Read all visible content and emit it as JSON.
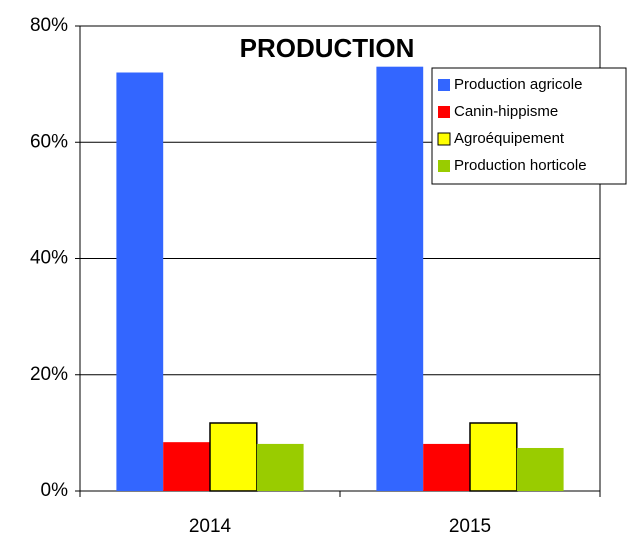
{
  "chart_data": {
    "type": "bar",
    "title": "PRODUCTION",
    "categories": [
      "2014",
      "2015"
    ],
    "series": [
      {
        "name": "Production agricole",
        "color": "#3366ff",
        "values": [
          72,
          73
        ]
      },
      {
        "name": "Canin-hippisme",
        "color": "#ff0000",
        "values": [
          8.4,
          8.1
        ]
      },
      {
        "name": "Agroéquipement",
        "color": "#ffff00",
        "values": [
          11.7,
          11.7
        ]
      },
      {
        "name": "Production horticole",
        "color": "#99cc00",
        "values": [
          8.1,
          7.4
        ]
      }
    ],
    "ylim": [
      0,
      80
    ],
    "yticks": [
      {
        "value": 0,
        "label": "0%"
      },
      {
        "value": 20,
        "label": "20%"
      },
      {
        "value": 40,
        "label": "40%"
      },
      {
        "value": 60,
        "label": "60%"
      },
      {
        "value": 80,
        "label": "80%"
      }
    ],
    "grid": true,
    "legend": "top-right"
  }
}
